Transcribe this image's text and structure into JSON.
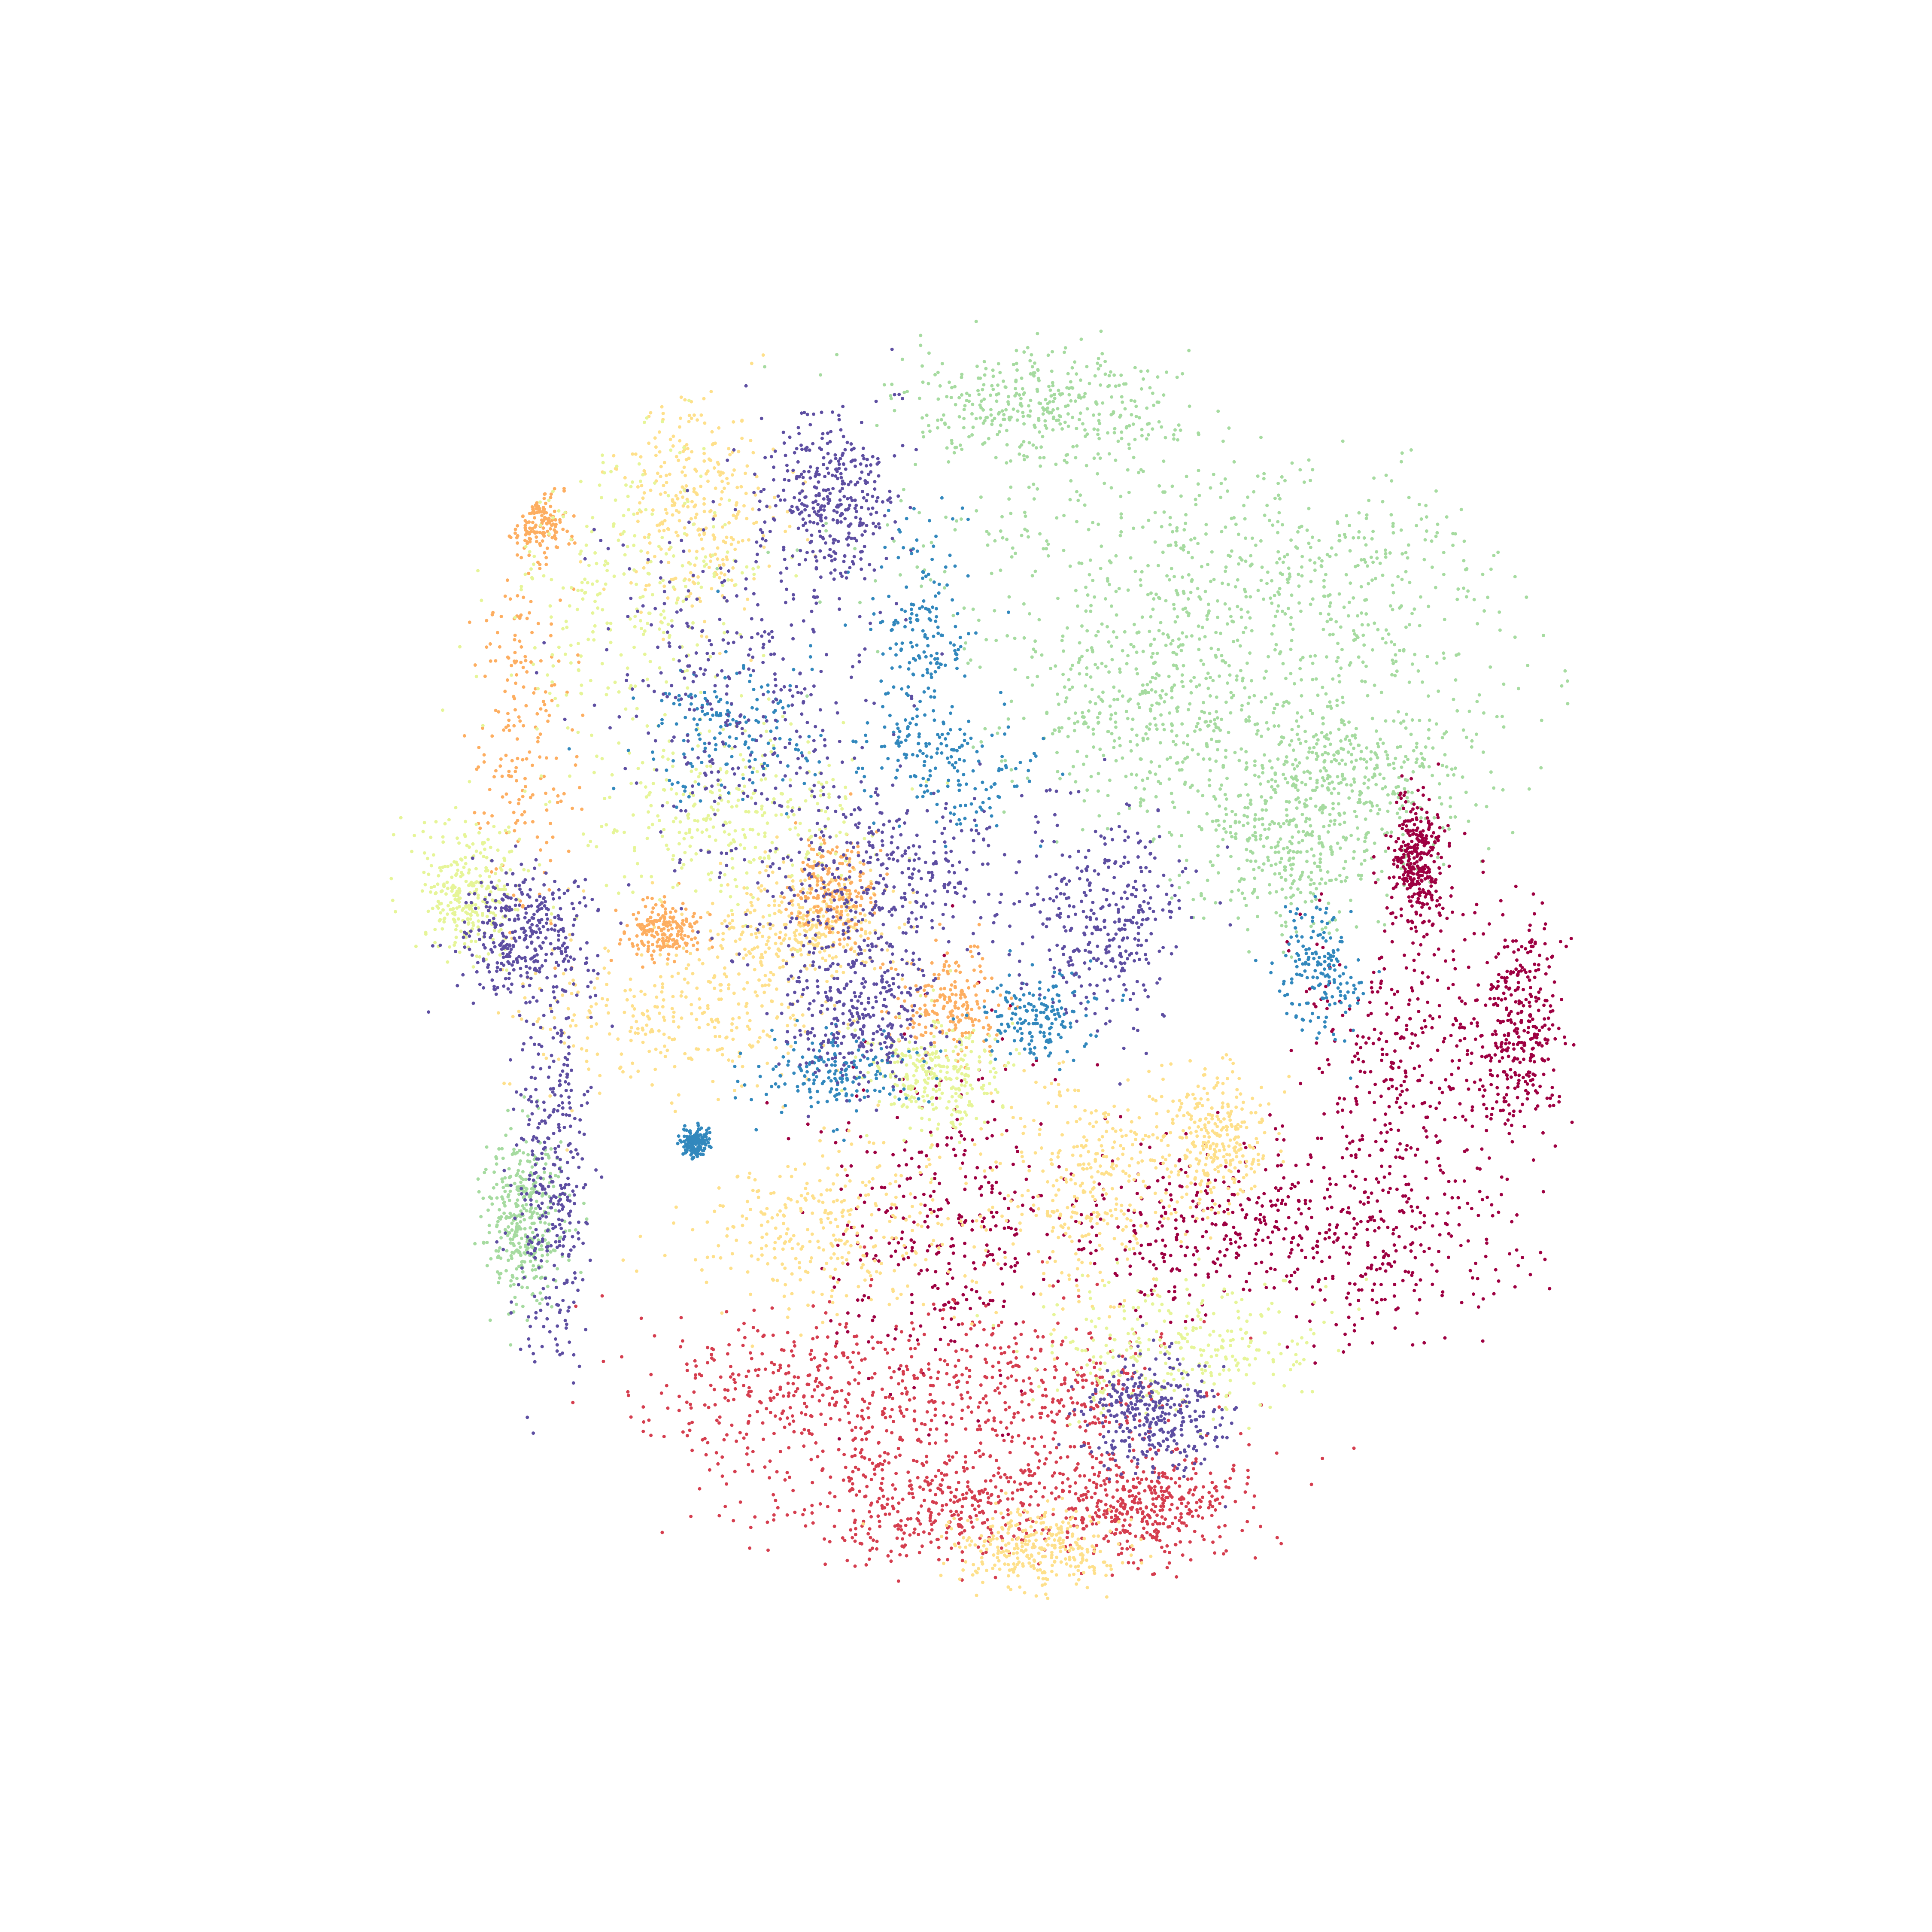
{
  "chart_data": {
    "type": "scatter",
    "title": "",
    "xlabel": "",
    "ylabel": "",
    "axes_visible": false,
    "grid": false,
    "legend": "none",
    "xlim": [
      -1.0,
      1.0
    ],
    "ylim": [
      -1.0,
      1.0
    ],
    "marker": "dot",
    "series": [
      {
        "color": "#a6dba0",
        "point_count": 2600,
        "blobs": [
          {
            "x": 0.05,
            "y": 0.82,
            "sx": 0.1,
            "sy": 0.04
          },
          {
            "x": 0.22,
            "y": 0.6,
            "sx": 0.22,
            "sy": 0.1
          },
          {
            "x": 0.48,
            "y": 0.55,
            "sx": 0.14,
            "sy": 0.1
          },
          {
            "x": 0.2,
            "y": 0.38,
            "sx": 0.1,
            "sy": 0.08
          },
          {
            "x": 0.5,
            "y": 0.3,
            "sx": 0.1,
            "sy": 0.06
          },
          {
            "x": 0.42,
            "y": 0.18,
            "sx": 0.08,
            "sy": 0.06
          },
          {
            "x": -0.7,
            "y": -0.36,
            "sx": 0.03,
            "sy": 0.06
          }
        ]
      },
      {
        "color": "#9e0142",
        "point_count": 1900,
        "blobs": [
          {
            "x": -0.1,
            "y": -0.36,
            "sx": 0.08,
            "sy": 0.12
          },
          {
            "x": 0.28,
            "y": -0.38,
            "sx": 0.12,
            "sy": 0.06
          },
          {
            "x": 0.6,
            "y": -0.1,
            "sx": 0.08,
            "sy": 0.1
          },
          {
            "x": 0.55,
            "y": -0.38,
            "sx": 0.1,
            "sy": 0.08
          },
          {
            "x": 0.6,
            "y": 0.16,
            "sx": 0.02,
            "sy": 0.05
          },
          {
            "x": 0.75,
            "y": -0.08,
            "sx": 0.03,
            "sy": 0.08
          }
        ]
      },
      {
        "color": "#d53e4f",
        "point_count": 1600,
        "blobs": [
          {
            "x": -0.3,
            "y": -0.62,
            "sx": 0.12,
            "sy": 0.06
          },
          {
            "x": 0.05,
            "y": -0.62,
            "sx": 0.12,
            "sy": 0.07
          },
          {
            "x": -0.1,
            "y": -0.78,
            "sx": 0.12,
            "sy": 0.04
          },
          {
            "x": 0.2,
            "y": -0.78,
            "sx": 0.08,
            "sy": 0.04
          }
        ]
      },
      {
        "color": "#fee08b",
        "point_count": 2200,
        "blobs": [
          {
            "x": -0.5,
            "y": -0.06,
            "sx": 0.12,
            "sy": 0.06
          },
          {
            "x": -0.26,
            "y": -0.38,
            "sx": 0.1,
            "sy": 0.06
          },
          {
            "x": 0.12,
            "y": -0.32,
            "sx": 0.06,
            "sy": 0.08
          },
          {
            "x": -0.3,
            "y": 0.07,
            "sx": 0.06,
            "sy": 0.04
          },
          {
            "x": -0.45,
            "y": 0.68,
            "sx": 0.06,
            "sy": 0.08
          },
          {
            "x": 0.05,
            "y": -0.84,
            "sx": 0.06,
            "sy": 0.03
          },
          {
            "x": 0.3,
            "y": -0.25,
            "sx": 0.04,
            "sy": 0.05
          }
        ]
      },
      {
        "color": "#fdae61",
        "point_count": 1000,
        "blobs": [
          {
            "x": -0.7,
            "y": 0.34,
            "sx": 0.04,
            "sy": 0.13
          },
          {
            "x": -0.08,
            "y": -0.05,
            "sx": 0.04,
            "sy": 0.04
          },
          {
            "x": -0.25,
            "y": 0.12,
            "sx": 0.03,
            "sy": 0.04
          },
          {
            "x": -0.5,
            "y": 0.06,
            "sx": 0.03,
            "sy": 0.02
          },
          {
            "x": -0.68,
            "y": 0.66,
            "sx": 0.02,
            "sy": 0.03
          }
        ]
      },
      {
        "color": "#e6f598",
        "point_count": 1500,
        "blobs": [
          {
            "x": -0.55,
            "y": 0.55,
            "sx": 0.1,
            "sy": 0.12
          },
          {
            "x": -0.4,
            "y": 0.22,
            "sx": 0.1,
            "sy": 0.06
          },
          {
            "x": -0.78,
            "y": 0.12,
            "sx": 0.04,
            "sy": 0.05
          },
          {
            "x": 0.25,
            "y": -0.55,
            "sx": 0.1,
            "sy": 0.05
          },
          {
            "x": -0.1,
            "y": -0.15,
            "sx": 0.05,
            "sy": 0.04
          }
        ]
      },
      {
        "color": "#3288bd",
        "point_count": 1200,
        "blobs": [
          {
            "x": -0.12,
            "y": 0.5,
            "sx": 0.04,
            "sy": 0.08
          },
          {
            "x": -0.08,
            "y": 0.3,
            "sx": 0.06,
            "sy": 0.05
          },
          {
            "x": -0.25,
            "y": -0.15,
            "sx": 0.06,
            "sy": 0.03
          },
          {
            "x": -0.4,
            "y": 0.35,
            "sx": 0.06,
            "sy": 0.05
          },
          {
            "x": 0.05,
            "y": -0.07,
            "sx": 0.04,
            "sy": 0.03
          },
          {
            "x": 0.46,
            "y": 0.0,
            "sx": 0.03,
            "sy": 0.05
          },
          {
            "x": -0.45,
            "y": -0.25,
            "sx": 0.01,
            "sy": 0.01
          }
        ]
      },
      {
        "color": "#5e4fa2",
        "point_count": 2800,
        "blobs": [
          {
            "x": -0.38,
            "y": 0.42,
            "sx": 0.1,
            "sy": 0.14
          },
          {
            "x": -0.18,
            "y": 0.14,
            "sx": 0.1,
            "sy": 0.06
          },
          {
            "x": -0.7,
            "y": 0.05,
            "sx": 0.05,
            "sy": 0.05
          },
          {
            "x": -0.66,
            "y": -0.3,
            "sx": 0.03,
            "sy": 0.14
          },
          {
            "x": 0.15,
            "y": 0.08,
            "sx": 0.06,
            "sy": 0.08
          },
          {
            "x": -0.22,
            "y": -0.05,
            "sx": 0.06,
            "sy": 0.06
          },
          {
            "x": -0.25,
            "y": 0.68,
            "sx": 0.05,
            "sy": 0.06
          },
          {
            "x": 0.22,
            "y": -0.65,
            "sx": 0.05,
            "sy": 0.04
          }
        ]
      }
    ]
  }
}
